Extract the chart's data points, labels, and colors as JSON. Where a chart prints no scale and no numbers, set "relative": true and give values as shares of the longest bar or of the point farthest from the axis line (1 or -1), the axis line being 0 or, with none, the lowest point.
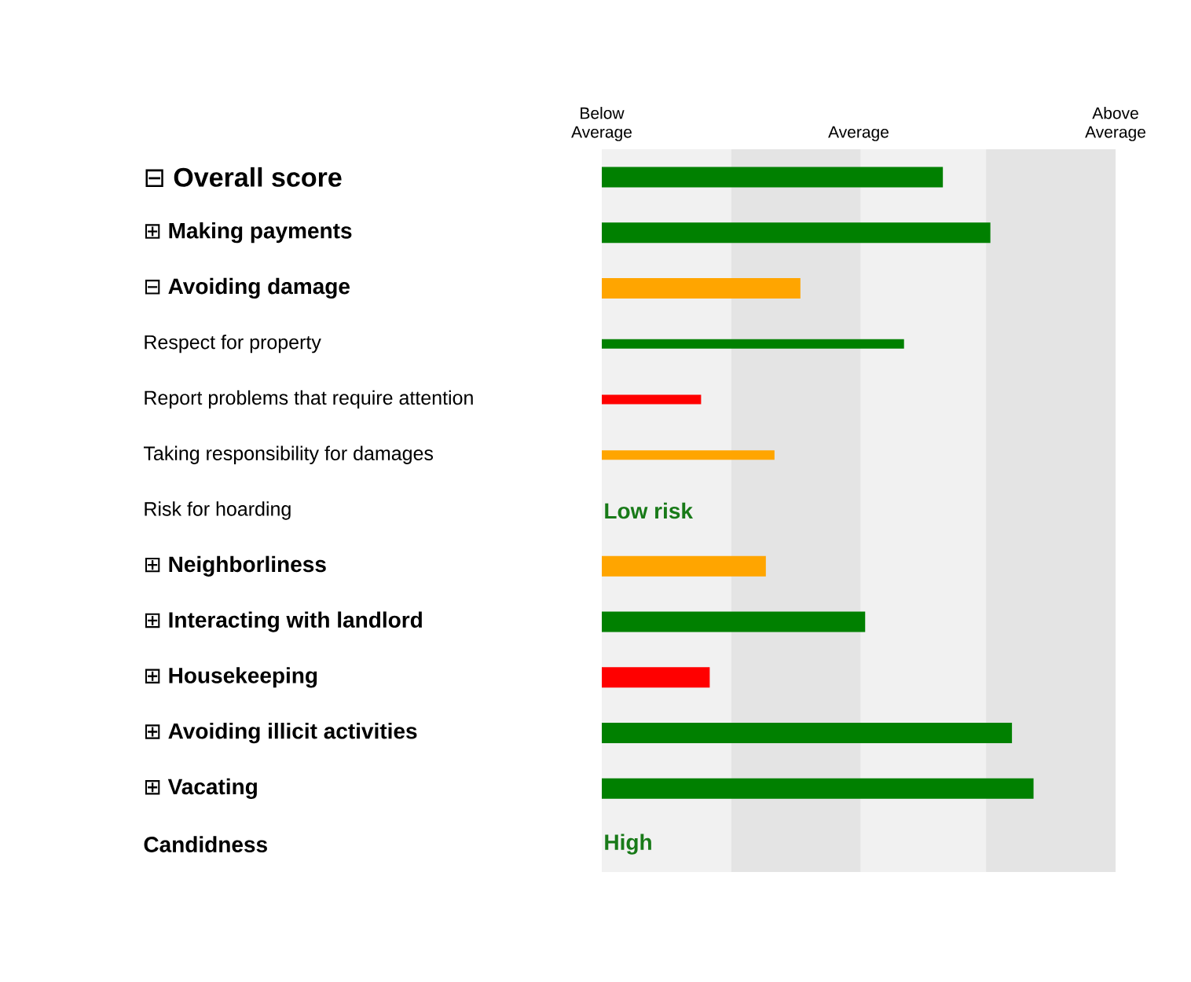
{
  "chart_data": {
    "type": "bar",
    "orientation": "horizontal",
    "relative": true,
    "categories": [
      "⊟ Overall score",
      "⊞ Making payments",
      "⊟ Avoiding damage",
      "Respect for property",
      "Report problems that require attention",
      "Taking responsibility for damages",
      "Risk for hoarding",
      "⊞ Neighborliness",
      "⊞ Interacting with landlord",
      "⊞ Housekeeping",
      "⊞ Avoiding illicit activities",
      "⊞ Vacating",
      "Candidness"
    ],
    "series": [
      {
        "values": [
          0.79,
          0.9,
          0.46,
          null,
          null,
          null,
          null,
          0.38,
          0.61,
          0.25,
          0.95,
          1,
          null
        ],
        "colors": [
          "#008000",
          "#008000",
          "#ffa500",
          null,
          null,
          null,
          null,
          "#ffa500",
          "#008000",
          "#ff0000",
          "#008000",
          "#008000",
          null
        ]
      },
      {
        "values": [
          null,
          null,
          null,
          0.7,
          0.23,
          0.4,
          null,
          null,
          null,
          null,
          null,
          null,
          null
        ],
        "colors": [
          null,
          null,
          null,
          "#008000",
          "#ff0000",
          "#ffa500",
          null,
          null,
          null,
          null,
          null,
          null,
          null
        ]
      }
    ],
    "bands": [
      {
        "axis": "x",
        "from": 0,
        "to": 0.3,
        "color": "#f1f1f1"
      },
      {
        "axis": "x",
        "from": 0.3,
        "to": 0.6,
        "color": "#e4e4e4"
      },
      {
        "axis": "x",
        "from": 0.6,
        "to": 0.89,
        "color": "#f1f1f1"
      },
      {
        "axis": "x",
        "from": 0.89,
        "to": 1.19,
        "color": "#e4e4e4"
      }
    ],
    "annotations": [
      "Below Average",
      "Average",
      "Above Average",
      "Low risk",
      "High"
    ]
  }
}
